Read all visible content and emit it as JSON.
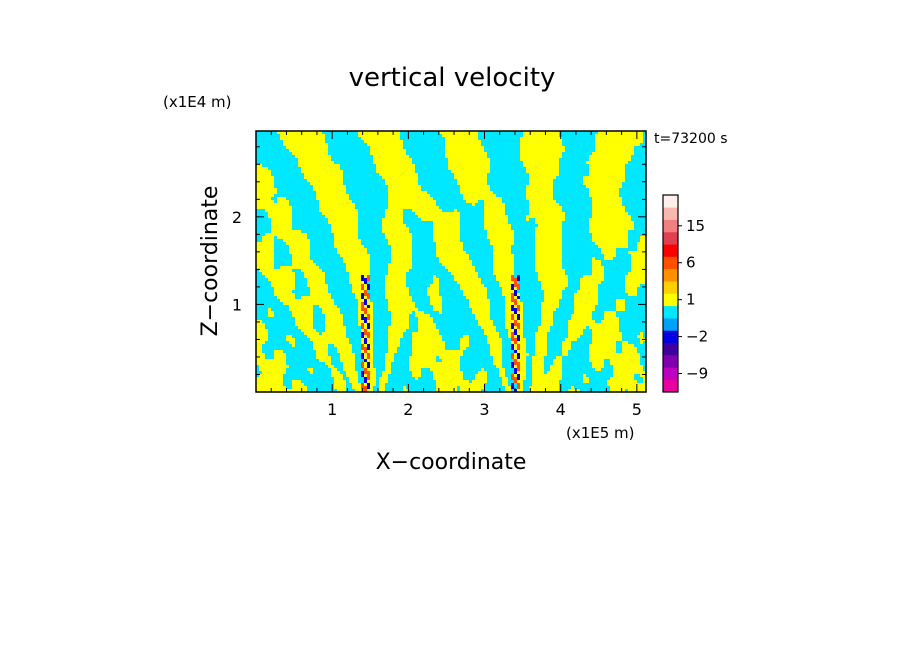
{
  "chart_data": {
    "type": "heatmap",
    "title": "vertical velocity",
    "xlabel": "X−coordinate",
    "ylabel": "Z−coordinate",
    "x_unit": "(x1E5 m)",
    "y_unit": "(x1E4 m)",
    "time_label": "t=73200 s",
    "xlim": [
      0,
      5.12
    ],
    "ylim": [
      0,
      2.98
    ],
    "x_ticks": [
      1,
      2,
      3,
      4,
      5
    ],
    "y_ticks": [
      1,
      2
    ],
    "x_tick_labels": [
      "1",
      "2",
      "3",
      "4",
      "5"
    ],
    "y_tick_labels": [
      "1",
      "2"
    ],
    "legend_position": "right",
    "colorbar": {
      "labels": [
        {
          "level": 15,
          "text": "15"
        },
        {
          "level": 6,
          "text": "6"
        },
        {
          "level": 1,
          "text": "1"
        },
        {
          "level": -2,
          "text": "−2"
        },
        {
          "level": -9,
          "text": "−9"
        }
      ],
      "levels": [
        -12,
        -9,
        -6,
        -4,
        -2,
        -1,
        0,
        1,
        2,
        4,
        6,
        9,
        12,
        15,
        18,
        21
      ],
      "colors": [
        "#e800a0",
        "#c000c0",
        "#8000b0",
        "#4000a0",
        "#0000e0",
        "#00a0ff",
        "#00e8ff",
        "#ffff00",
        "#ffd000",
        "#ff9000",
        "#ff5000",
        "#ff0000",
        "#e04050",
        "#f08080",
        "#f8b8b0",
        "#fff0ec"
      ]
    },
    "field_colors": {
      "positive": "#ffff00",
      "negative": "#00e8ff",
      "strong_positive": "#ff5000",
      "strong_negative": "#0000e0"
    },
    "updraft_columns_x": [
      1.45,
      3.42
    ]
  }
}
